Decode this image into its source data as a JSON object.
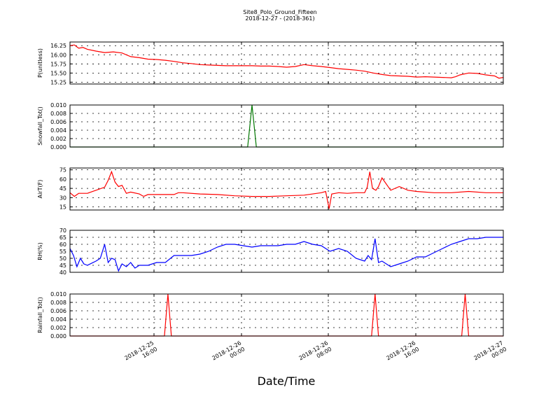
{
  "title": "Site8_Polo_Ground_Fifteen",
  "subtitle": "2018-12-27 - (2018-361)",
  "xlabel": "Date/Time",
  "x_ticks": [
    {
      "line1": "2018-12-25",
      "line2": "16:00"
    },
    {
      "line1": "2018-12-26",
      "line2": "00:00"
    },
    {
      "line1": "2018-12-26",
      "line2": "08:00"
    },
    {
      "line1": "2018-12-26",
      "line2": "16:00"
    },
    {
      "line1": "2018-12-27",
      "line2": "00:00"
    }
  ],
  "chart_data": [
    {
      "type": "line",
      "ylabel": "P(unitless)",
      "color": "#ff0000",
      "ylim": [
        15.2,
        16.35
      ],
      "yticks": [
        "16.25",
        "16.00",
        "15.75",
        "15.50",
        "15.25"
      ],
      "ytick_values": [
        16.25,
        16.0,
        15.75,
        15.5,
        15.25
      ],
      "x": [
        0,
        0.5,
        1,
        1.5,
        2,
        3,
        4,
        5,
        6,
        7,
        8,
        9,
        10,
        11,
        12,
        13,
        14,
        15,
        16,
        17,
        18,
        19,
        20,
        21,
        22,
        23,
        24,
        25,
        26,
        27,
        28,
        29,
        30,
        31,
        32,
        33,
        34,
        35,
        36,
        37,
        38,
        39,
        40,
        41,
        42,
        43,
        44,
        44.5,
        45,
        46,
        47,
        48,
        49,
        49.5,
        50
      ],
      "values": [
        16.25,
        16.27,
        16.18,
        16.2,
        16.15,
        16.1,
        16.06,
        16.08,
        16.05,
        15.95,
        15.92,
        15.88,
        15.87,
        15.85,
        15.82,
        15.78,
        15.76,
        15.73,
        15.72,
        15.71,
        15.7,
        15.7,
        15.7,
        15.7,
        15.69,
        15.69,
        15.68,
        15.66,
        15.68,
        15.73,
        15.7,
        15.68,
        15.65,
        15.62,
        15.6,
        15.58,
        15.55,
        15.5,
        15.46,
        15.43,
        15.42,
        15.41,
        15.39,
        15.4,
        15.39,
        15.38,
        15.37,
        15.4,
        15.45,
        15.5,
        15.49,
        15.45,
        15.42,
        15.36,
        15.38
      ]
    },
    {
      "type": "line",
      "ylabel": "Snowfall_Tot()",
      "color": "#007700",
      "ylim": [
        0,
        0.01
      ],
      "yticks": [
        "0.010",
        "0.008",
        "0.006",
        "0.004",
        "0.002",
        "0.000"
      ],
      "ytick_values": [
        0.01,
        0.008,
        0.006,
        0.004,
        0.002,
        0.0
      ],
      "x": [
        0,
        20.5,
        21,
        21.5,
        50
      ],
      "values": [
        0,
        0,
        0.01,
        0,
        0
      ]
    },
    {
      "type": "line",
      "ylabel": "AirT(F)",
      "color": "#ff0000",
      "ylim": [
        10,
        78
      ],
      "yticks": [
        "75",
        "60",
        "45",
        "30",
        "15"
      ],
      "ytick_values": [
        75,
        60,
        45,
        30,
        15
      ],
      "x": [
        0,
        0.5,
        1,
        2,
        3,
        4,
        4.4,
        4.8,
        5.2,
        5.6,
        6,
        6.5,
        7,
        8,
        8.5,
        9,
        10,
        11,
        12,
        12.5,
        13,
        15,
        17,
        19,
        21,
        23,
        25,
        27,
        29,
        29.5,
        29.9,
        30.2,
        31,
        32,
        33,
        34,
        34.3,
        34.6,
        34.9,
        35.3,
        35.6,
        36,
        37,
        38,
        39,
        40,
        42,
        44,
        46,
        48,
        50
      ],
      "values": [
        38,
        32,
        37,
        37,
        42,
        47,
        58,
        72,
        55,
        48,
        50,
        37,
        39,
        36,
        32,
        35,
        35,
        35,
        35,
        38,
        38,
        36,
        35,
        33,
        32,
        32,
        33,
        34,
        38,
        40,
        12,
        36,
        38,
        37,
        38,
        38,
        47,
        72,
        45,
        42,
        48,
        62,
        42,
        48,
        42,
        40,
        38,
        38,
        40,
        38,
        38
      ]
    },
    {
      "type": "line",
      "ylabel": "RH(%)",
      "color": "#0000ff",
      "ylim": [
        40,
        70
      ],
      "yticks": [
        "70",
        "65",
        "60",
        "55",
        "50",
        "45",
        "40"
      ],
      "ytick_values": [
        70,
        65,
        60,
        55,
        50,
        45,
        40
      ],
      "x": [
        0,
        0.4,
        0.8,
        1.2,
        1.6,
        2,
        3,
        3.5,
        4,
        4.4,
        4.8,
        5.2,
        5.6,
        6,
        6.5,
        7,
        7.5,
        8,
        9,
        10,
        11,
        12,
        13,
        14,
        15,
        16,
        17,
        18,
        19,
        20,
        21,
        22,
        23,
        24,
        25,
        26,
        27,
        28,
        29,
        30,
        31,
        32,
        33,
        34,
        34.4,
        34.8,
        35.2,
        35.6,
        36,
        37,
        38,
        39,
        40,
        41,
        42,
        43,
        44,
        45,
        46,
        47,
        48,
        49,
        50
      ],
      "values": [
        57,
        52,
        44,
        50,
        46,
        45,
        48,
        50,
        60,
        47,
        50,
        49,
        41,
        46,
        44,
        47,
        43,
        45,
        45,
        47,
        47,
        52,
        52,
        52,
        53,
        55,
        58,
        60,
        60,
        59,
        58,
        59,
        59,
        59,
        60,
        60,
        62,
        60,
        59,
        55,
        57,
        55,
        50,
        48,
        52,
        49,
        64,
        47,
        48,
        44,
        46,
        48,
        51,
        51,
        54,
        57,
        60,
        62,
        64,
        64,
        65,
        65,
        65
      ]
    },
    {
      "type": "line",
      "ylabel": "Rainfall_Tot()",
      "color": "#ff0000",
      "ylim": [
        0,
        0.01
      ],
      "yticks": [
        "0.010",
        "0.008",
        "0.006",
        "0.004",
        "0.002",
        "0.000"
      ],
      "ytick_values": [
        0.01,
        0.008,
        0.006,
        0.004,
        0.002,
        0.0
      ],
      "x": [
        0,
        10.9,
        11.3,
        11.7,
        34.8,
        35.2,
        35.6,
        45.2,
        45.6,
        46,
        50
      ],
      "values": [
        0,
        0,
        0.01,
        0,
        0,
        0.01,
        0,
        0,
        0.01,
        0,
        0
      ]
    }
  ]
}
